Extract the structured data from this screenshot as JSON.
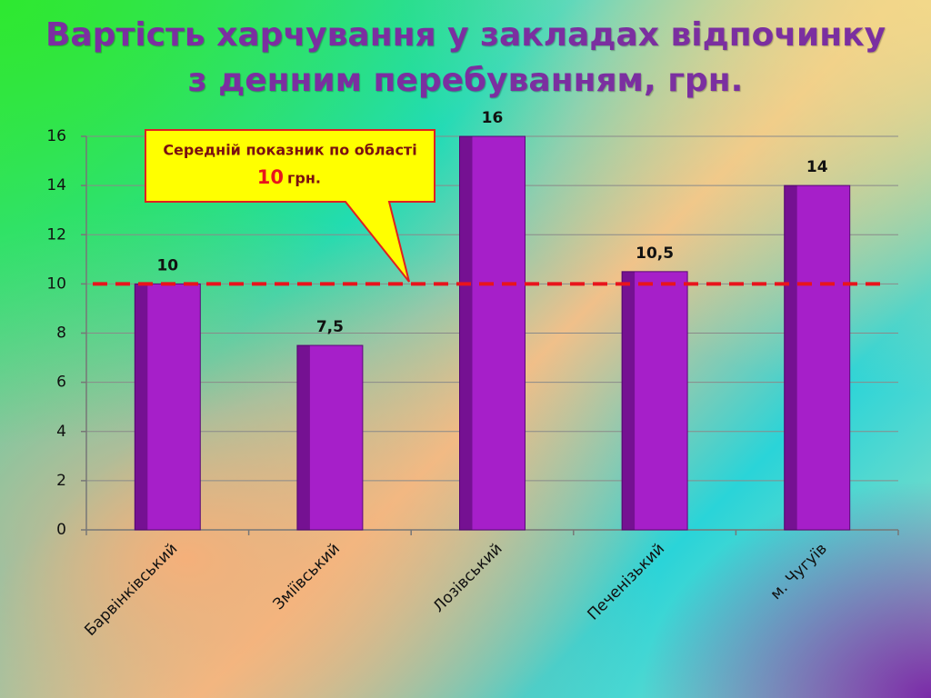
{
  "chart_data": {
    "type": "bar",
    "title": "Вартість харчування у закладах відпочинку з денним перебуванням, грн.",
    "categories": [
      "Барвінківський",
      "Зміївський",
      "Лозівський",
      "Печенізький",
      "м. Чугуїв"
    ],
    "values": [
      10,
      7.5,
      16,
      10.5,
      14
    ],
    "value_labels": [
      "10",
      "7,5",
      "16",
      "10,5",
      "14"
    ],
    "color": "#a61fc9",
    "ylim": [
      0,
      16
    ],
    "yticks": [
      0,
      2,
      4,
      6,
      8,
      10,
      12,
      14,
      16
    ],
    "grid": true,
    "reference_line": {
      "value": 10,
      "color": "#e8141c",
      "label": "Середній показник по області",
      "unit": "грн."
    }
  }
}
